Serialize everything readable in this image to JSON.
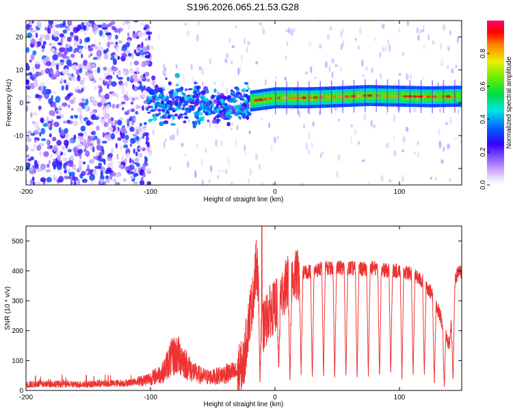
{
  "title": "S196.2026.065.21.53.G28",
  "top_panel": {
    "ylabel": "Frequency (Hz)",
    "xlabel": "Height of straight line (km)",
    "colorbar_label": "Normalized spectral amplitude"
  },
  "bottom_panel": {
    "ylabel": "SNR (10 * v/v)",
    "xlabel": "Height of straight line (km)"
  },
  "chart_data": [
    {
      "type": "heatmap",
      "title": "S196.2026.065.21.53.G28",
      "xlabel": "Height of straight line (km)",
      "ylabel": "Frequency (Hz)",
      "xlim": [
        -200,
        150
      ],
      "ylim": [
        -25,
        25
      ],
      "xticks": [
        -200,
        -100,
        0,
        100
      ],
      "xtick_labels": [
        "-200",
        "-100",
        "0",
        "100"
      ],
      "yticks": [
        -20,
        -10,
        0,
        10,
        20
      ],
      "ytick_labels": [
        "-20",
        "-10",
        "0",
        "10",
        "20"
      ],
      "colorbar": {
        "label": "Normalized spectral amplitude",
        "range": [
          0,
          1
        ],
        "ticks": [
          0.0,
          0.2,
          0.4,
          0.6,
          0.8
        ],
        "tick_labels": [
          "0.0",
          "0.2",
          "0.4",
          "0.6",
          "0.8"
        ]
      },
      "ridge": {
        "description_points_x": [
          -20,
          -10,
          0,
          25,
          50,
          75,
          100,
          125,
          150
        ],
        "frequency_hz": [
          0.5,
          1.0,
          1.5,
          1.5,
          1.8,
          2.2,
          2.0,
          1.8,
          2.0
        ]
      }
    },
    {
      "type": "line",
      "xlabel": "Height of straight line (km)",
      "ylabel": "SNR (10 * v/v)",
      "xlim": [
        -200,
        150
      ],
      "ylim": [
        0,
        550
      ],
      "xticks": [
        -200,
        -100,
        0,
        100
      ],
      "xtick_labels": [
        "-200",
        "-100",
        "0",
        "100"
      ],
      "yticks": [
        0,
        100,
        200,
        300,
        400,
        500
      ],
      "ytick_labels": [
        "0",
        "100",
        "200",
        "300",
        "400",
        "500"
      ],
      "series": [
        {
          "name": "SNR",
          "color": "#ee3333",
          "x": [
            -200,
            -180,
            -160,
            -140,
            -120,
            -110,
            -100,
            -90,
            -85,
            -80,
            -75,
            -70,
            -65,
            -60,
            -55,
            -50,
            -45,
            -40,
            -35,
            -30,
            -25,
            -22,
            -20,
            -18,
            -15,
            -12,
            -10,
            -5,
            0,
            5,
            10,
            20,
            30,
            40,
            50,
            60,
            70,
            80,
            90,
            100,
            110,
            120,
            125,
            130,
            135,
            140,
            145,
            150
          ],
          "values": [
            20,
            22,
            20,
            22,
            25,
            30,
            40,
            60,
            100,
            120,
            110,
            80,
            60,
            50,
            45,
            45,
            50,
            55,
            60,
            60,
            90,
            200,
            260,
            300,
            420,
            350,
            200,
            260,
            280,
            320,
            360,
            390,
            400,
            410,
            410,
            410,
            405,
            410,
            400,
            400,
            390,
            360,
            330,
            280,
            220,
            150,
            380,
            400
          ]
        }
      ],
      "dips": {
        "x": [
          -12,
          3,
          12,
          21,
          30,
          39,
          48,
          57,
          66,
          75,
          84,
          93,
          102,
          111,
          120,
          128,
          136,
          143
        ],
        "values": [
          15,
          60,
          20,
          40,
          25,
          35,
          30,
          30,
          25,
          35,
          30,
          40,
          25,
          30,
          40,
          10,
          5,
          20
        ]
      }
    }
  ]
}
